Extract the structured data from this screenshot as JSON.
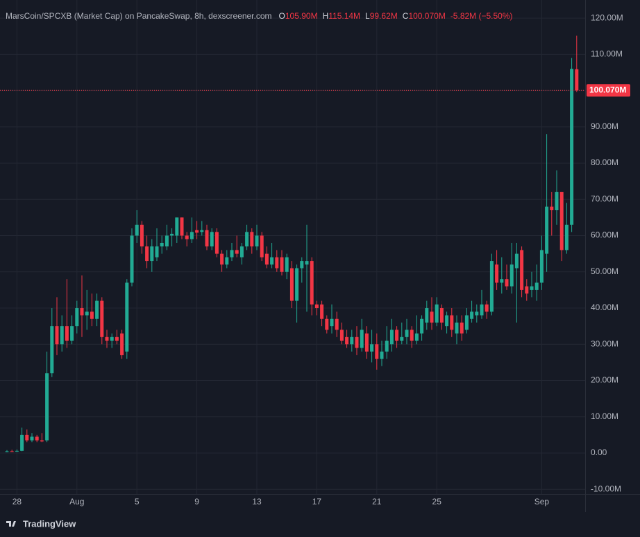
{
  "chart_data": {
    "type": "candlestick",
    "title": "MarsCoin/SPCXB (Market Cap) on PancakeSwap, 8h, dexscreener.com",
    "ohlc": [
      {
        "label": "O",
        "value": "105.90M"
      },
      {
        "label": "H",
        "value": "115.14M"
      },
      {
        "label": "L",
        "value": "99.62M"
      },
      {
        "label": "C",
        "value": "100.070M"
      }
    ],
    "change": "-5.82M (−5.50%)",
    "categories": [
      null,
      null,
      "28",
      null,
      null,
      null,
      null,
      null,
      null,
      null,
      null,
      null,
      null,
      null,
      "Aug",
      null,
      null,
      null,
      null,
      null,
      null,
      null,
      null,
      null,
      null,
      null,
      "5",
      null,
      null,
      null,
      null,
      null,
      null,
      null,
      null,
      null,
      null,
      null,
      "9",
      null,
      null,
      null,
      null,
      null,
      null,
      null,
      null,
      null,
      null,
      null,
      "13",
      null,
      null,
      null,
      null,
      null,
      null,
      null,
      null,
      null,
      null,
      null,
      "17",
      null,
      null,
      null,
      null,
      null,
      null,
      null,
      null,
      null,
      null,
      null,
      "21",
      null,
      null,
      null,
      null,
      null,
      null,
      null,
      null,
      null,
      null,
      null,
      "25",
      null,
      null,
      null,
      null,
      null,
      null,
      null,
      null,
      null,
      null,
      null,
      null,
      null,
      null,
      null,
      null,
      null,
      null,
      null,
      null,
      "Sep",
      null,
      null,
      null,
      null,
      null,
      null,
      null
    ],
    "open": [
      0.3,
      0.5,
      0.4,
      0.6,
      5,
      3.5,
      4.5,
      3.5,
      3.5,
      22,
      35,
      30,
      35,
      31,
      35,
      40,
      38,
      39,
      37,
      42,
      32,
      31,
      32,
      33,
      28,
      47,
      60,
      63,
      57,
      53,
      54,
      57,
      57,
      60,
      60,
      65,
      60,
      59,
      61.5,
      61,
      61.5,
      57,
      61,
      55,
      52,
      54,
      56,
      54,
      57,
      61,
      57,
      60,
      55,
      52,
      54,
      54,
      50,
      51,
      42,
      51,
      52,
      53,
      41,
      41,
      37,
      35,
      37,
      34,
      32,
      30,
      32,
      29,
      33,
      28,
      30,
      26,
      28,
      30,
      34,
      31,
      32,
      34,
      31,
      33,
      36,
      39,
      36,
      40,
      35,
      38,
      33,
      36,
      34,
      37,
      38,
      38,
      41,
      39,
      52,
      47,
      48,
      46,
      51,
      56,
      46,
      45,
      45,
      47,
      55,
      68,
      67,
      72,
      56,
      63,
      105.9
    ],
    "high": [
      0.8,
      0.9,
      1,
      7,
      6.5,
      5.5,
      5,
      5.5,
      28,
      40,
      43,
      38,
      48,
      38,
      42,
      49,
      45,
      44,
      44,
      43,
      34,
      33,
      34,
      34,
      48,
      62,
      67,
      64,
      60,
      59,
      62,
      60,
      63,
      62,
      65,
      65,
      61,
      65,
      64,
      64,
      63,
      62,
      62,
      56,
      56,
      58,
      60,
      58,
      63,
      62,
      63,
      61,
      57,
      58,
      56,
      56,
      55,
      53,
      52,
      54,
      63,
      54,
      42,
      42,
      38,
      41,
      39,
      36,
      34,
      34,
      35,
      37,
      35,
      34,
      33,
      31,
      35,
      37,
      35,
      36,
      37,
      35,
      38,
      38,
      42,
      43,
      43,
      41,
      39,
      40,
      38,
      38,
      40,
      42,
      41,
      45,
      42,
      55,
      56,
      54,
      52,
      58,
      58,
      57,
      48,
      50,
      52,
      60,
      88,
      72,
      78,
      72,
      69,
      109,
      115.14
    ],
    "low": [
      0.2,
      0.3,
      0.3,
      0.5,
      3,
      3,
      3,
      3,
      3,
      21,
      27,
      28,
      29,
      30,
      33,
      32,
      34,
      35,
      35,
      30,
      29,
      29,
      30,
      26,
      26,
      46,
      58,
      55,
      51,
      50,
      53,
      55,
      56,
      57,
      58,
      59,
      57,
      58,
      59,
      60,
      56,
      56,
      54,
      50,
      51,
      53,
      54,
      52,
      56,
      55,
      56,
      53,
      51,
      51,
      50,
      49,
      48,
      40,
      36,
      47,
      39,
      38,
      38,
      35,
      33,
      33,
      32,
      30,
      29,
      28,
      27,
      28,
      26,
      25,
      23,
      24,
      26,
      28,
      29,
      30,
      30,
      29,
      30,
      31,
      34,
      34,
      35,
      34,
      33,
      32,
      30,
      31,
      33,
      36,
      36,
      37,
      37,
      38,
      45,
      44,
      45,
      44,
      36,
      43,
      42,
      43,
      42,
      45,
      50,
      60,
      63,
      53,
      55,
      61,
      99.62
    ],
    "close": [
      0.5,
      0.4,
      0.6,
      5,
      3.5,
      4.5,
      3.5,
      3.2,
      22,
      35,
      30,
      35,
      31,
      35,
      40,
      38,
      39,
      37,
      42,
      32,
      31,
      32,
      31,
      27,
      47,
      60,
      63,
      57,
      53,
      57,
      57,
      58,
      60,
      60.5,
      65,
      60,
      59,
      61,
      60.8,
      61.5,
      57,
      61,
      55,
      52,
      54,
      56,
      55,
      57,
      61,
      57,
      60,
      54,
      52,
      54,
      51,
      50,
      54,
      42,
      51,
      53,
      53,
      41,
      40,
      37,
      34,
      37,
      34,
      31,
      30,
      32,
      29,
      34,
      28,
      30,
      26,
      28,
      31,
      34,
      31,
      32,
      34,
      31,
      33,
      37,
      40,
      36,
      41,
      36,
      38,
      34,
      36,
      33,
      38,
      39,
      39,
      41,
      39,
      53,
      47,
      48,
      46,
      52,
      55,
      45,
      44,
      46,
      47,
      56,
      68,
      67,
      72,
      56,
      63,
      106,
      100.07
    ],
    "up_color": "#22ab94",
    "down_color": "#f23645",
    "ylim": [
      -11.3,
      125
    ],
    "yticks": [
      {
        "value": -10,
        "label": "-10.00M"
      },
      {
        "value": 0,
        "label": "0.00"
      },
      {
        "value": 10,
        "label": "10.00M"
      },
      {
        "value": 20,
        "label": "20.00M"
      },
      {
        "value": 30,
        "label": "30.00M"
      },
      {
        "value": 40,
        "label": "40.00M"
      },
      {
        "value": 50,
        "label": "50.00M"
      },
      {
        "value": 60,
        "label": "60.00M"
      },
      {
        "value": 70,
        "label": "70.00M"
      },
      {
        "value": 80,
        "label": "80.00M"
      },
      {
        "value": 90,
        "label": "90.00M"
      },
      {
        "value": 100,
        "label": "100.00M"
      },
      {
        "value": 110,
        "label": "110.00M"
      },
      {
        "value": 120,
        "label": "120.00M"
      }
    ],
    "grid": true,
    "footer": "TradingView"
  }
}
